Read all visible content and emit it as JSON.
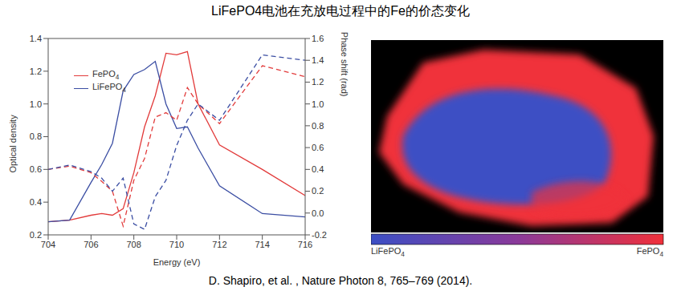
{
  "title": "LiFePO4电池在充放电过程中的Fe的价态变化",
  "citation": "D. Shapiro, et al. , Nature Photon 8, 765–769 (2014).",
  "chart_data": {
    "type": "line",
    "x_label": "Energy (eV)",
    "y_label": "Optical density",
    "y2_label": "Phase shift (rad)",
    "x": [
      704,
      705,
      706,
      706.5,
      707,
      707.5,
      708,
      708.5,
      709,
      709.5,
      710,
      710.5,
      711,
      712,
      714,
      716
    ],
    "xlim": [
      704,
      716
    ],
    "xticks": [
      704,
      706,
      708,
      710,
      712,
      714,
      716
    ],
    "ylim": [
      0.2,
      1.4
    ],
    "yticks": [
      0.2,
      0.4,
      0.6,
      0.8,
      {
        "value": 1,
        "label": "1.0"
      },
      1.2,
      1.4
    ],
    "y2lim": [
      -0.2,
      1.6
    ],
    "y2ticks": [
      -0.2,
      {
        "value": 0,
        "label": "0.0"
      },
      0.2,
      0.4,
      0.6,
      0.8,
      {
        "value": 1,
        "label": "1.0"
      },
      1.2,
      1.4,
      1.6
    ],
    "grid": false,
    "legend": "upper left",
    "series": [
      {
        "name": "FePO4",
        "color": "#e23b3b",
        "line_style": "solid",
        "values": [
          0.28,
          0.29,
          0.32,
          0.33,
          0.32,
          0.36,
          0.58,
          0.86,
          1.05,
          1.31,
          1.3,
          1.32,
          1.0,
          0.75,
          0.6,
          0.44
        ]
      },
      {
        "name": "LiFePO4",
        "color": "#3b4ea3",
        "line_style": "solid",
        "values": [
          0.28,
          0.29,
          0.52,
          0.63,
          0.76,
          1.08,
          1.18,
          1.21,
          1.26,
          1.0,
          0.85,
          0.86,
          0.73,
          0.5,
          0.33,
          0.31
        ]
      },
      {
        "name": "FePO4",
        "color": "#e23b3b",
        "line_style": "dashed",
        "axis": "y2",
        "values": [
          0.4,
          0.43,
          0.37,
          0.29,
          0.2,
          -0.12,
          0.3,
          0.5,
          0.88,
          0.92,
          0.85,
          1.15,
          1.0,
          0.82,
          1.35,
          1.25
        ]
      },
      {
        "name": "LiFePO4",
        "color": "#3b4ea3",
        "line_style": "dashed",
        "axis": "y2",
        "values": [
          0.4,
          0.44,
          0.38,
          0.32,
          0.2,
          0.32,
          -0.1,
          -0.15,
          0.15,
          0.3,
          0.62,
          0.85,
          1.0,
          0.85,
          1.45,
          1.4
        ]
      }
    ]
  },
  "image": {
    "colorbar": {
      "low_label": "LiFePO4",
      "high_label": "FePO4",
      "low_color": "#3c4fc4",
      "high_color": "#f0303a"
    }
  }
}
